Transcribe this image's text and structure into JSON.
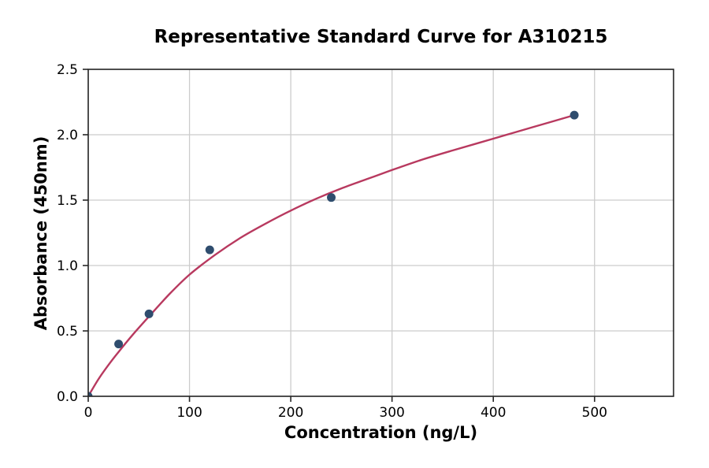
{
  "chart_data": {
    "type": "scatter",
    "title": "Representative Standard Curve for A310215",
    "xlabel": "Concentration (ng/L)",
    "ylabel": "Absorbance (450nm)",
    "xlim": [
      0,
      578
    ],
    "ylim": [
      0,
      2.5
    ],
    "x_ticks": [
      0,
      100,
      200,
      300,
      400,
      500
    ],
    "y_ticks": [
      0.0,
      0.5,
      1.0,
      1.5,
      2.0,
      2.5
    ],
    "grid": true,
    "legend": "none",
    "points": [
      {
        "x": 0,
        "y": 0.0
      },
      {
        "x": 30,
        "y": 0.4
      },
      {
        "x": 60,
        "y": 0.63
      },
      {
        "x": 120,
        "y": 1.12
      },
      {
        "x": 240,
        "y": 1.52
      },
      {
        "x": 480,
        "y": 2.15
      }
    ],
    "fit_curve": [
      [
        0,
        0
      ],
      [
        10,
        0.13
      ],
      [
        20,
        0.24
      ],
      [
        30,
        0.34
      ],
      [
        45,
        0.48
      ],
      [
        60,
        0.61
      ],
      [
        80,
        0.78
      ],
      [
        100,
        0.93
      ],
      [
        125,
        1.08
      ],
      [
        150,
        1.21
      ],
      [
        175,
        1.32
      ],
      [
        200,
        1.42
      ],
      [
        225,
        1.51
      ],
      [
        250,
        1.59
      ],
      [
        275,
        1.66
      ],
      [
        300,
        1.73
      ],
      [
        330,
        1.81
      ],
      [
        360,
        1.88
      ],
      [
        400,
        1.97
      ],
      [
        440,
        2.06
      ],
      [
        480,
        2.15
      ]
    ],
    "colors": {
      "curve": "#b8395f",
      "marker": "#2f4d6e",
      "grid": "#cccccc",
      "spine": "#262626",
      "text": "#000000",
      "background": "#ffffff"
    }
  }
}
